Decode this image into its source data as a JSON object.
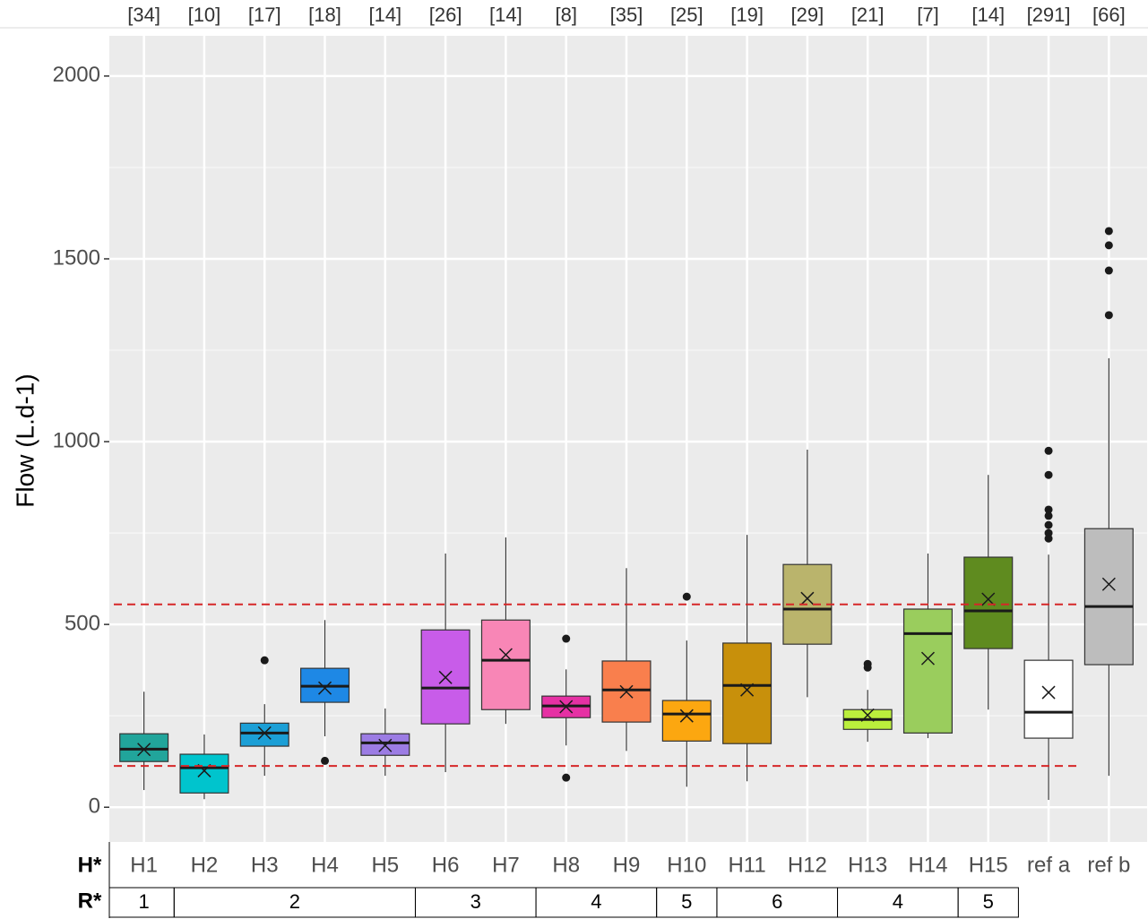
{
  "chart_data": {
    "type": "box",
    "y_label": "Flow (L.d-1)",
    "categories": [
      "H1",
      "H2",
      "H3",
      "H4",
      "H5",
      "H6",
      "H7",
      "H8",
      "H9",
      "H10",
      "H11",
      "H12",
      "H13",
      "H14",
      "H15",
      "ref a",
      "ref b"
    ],
    "sample_sizes": [
      "[34]",
      "[10]",
      "[17]",
      "[18]",
      "[14]",
      "[26]",
      "[14]",
      "[8]",
      "[35]",
      "[25]",
      "[19]",
      "[29]",
      "[21]",
      "[7]",
      "[14]",
      "[291]",
      "[66]"
    ],
    "low": [
      47,
      22,
      86,
      194,
      86,
      96,
      228,
      169,
      154,
      56,
      71,
      301,
      179,
      189,
      267,
      20,
      86
    ],
    "q1": [
      125,
      39,
      167,
      287,
      142,
      228,
      267,
      245,
      233,
      181,
      174,
      446,
      213,
      203,
      434,
      189,
      390
    ],
    "median": [
      159,
      108,
      203,
      331,
      176,
      326,
      402,
      277,
      321,
      255,
      333,
      542,
      240,
      475,
      537,
      260,
      549
    ],
    "q3": [
      201,
      145,
      230,
      380,
      201,
      485,
      512,
      304,
      400,
      292,
      449,
      664,
      267,
      542,
      684,
      402,
      762
    ],
    "high": [
      316,
      199,
      282,
      512,
      270,
      694,
      738,
      377,
      654,
      456,
      745,
      978,
      321,
      694,
      909,
      691,
      1228
    ],
    "mean": [
      158,
      100,
      203,
      326,
      169,
      355,
      417,
      275,
      316,
      250,
      321,
      571,
      252,
      407,
      569,
      314,
      610
    ],
    "outliers": [
      [],
      [],
      [
        402
      ],
      [
        127
      ],
      [],
      [],
      [],
      [
        461,
        81
      ],
      [],
      [
        576
      ],
      [],
      [],
      [
        392,
        382
      ],
      [],
      [],
      [
        975,
        909,
        814,
        797,
        772,
        750,
        735
      ],
      [
        1576,
        1537,
        1468,
        1346
      ]
    ],
    "colors": [
      "#21a59b",
      "#00c4cd",
      "#1b9fd6",
      "#1e88e5",
      "#9c7ce4",
      "#c85ce9",
      "#f886b6",
      "#e631a4",
      "#f97f4d",
      "#fca710",
      "#c8900b",
      "#bab46c",
      "#bbef3c",
      "#9acd5d",
      "#5f8b1f",
      "#ffffff",
      "#bdbdbd"
    ],
    "reference_lines": [
      555,
      113
    ],
    "reference_color": "#d62728",
    "ylim": [
      -95,
      2110
    ],
    "yticks": [
      0,
      500,
      1000,
      1500,
      2000
    ],
    "minor_yticks": [
      250,
      750,
      1250,
      1750
    ],
    "grid": true,
    "row_labels": [
      "H*",
      "R*"
    ],
    "row_groups": [
      {
        "label": "1",
        "span": 1
      },
      {
        "label": "2",
        "span": 4
      },
      {
        "label": "3",
        "span": 2
      },
      {
        "label": "4",
        "span": 2
      },
      {
        "label": "5",
        "span": 1
      },
      {
        "label": "6",
        "span": 2
      },
      {
        "label": "4",
        "span": 2
      },
      {
        "label": "5",
        "span": 1
      }
    ]
  }
}
